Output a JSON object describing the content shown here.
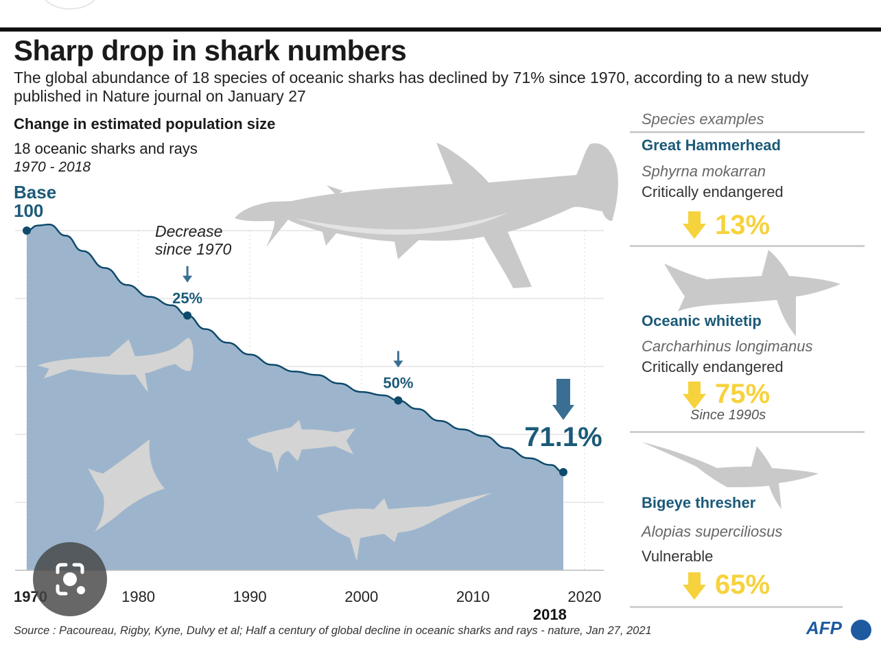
{
  "header": {
    "title": "Sharp drop in shark numbers",
    "subtitle": "The global abundance of 18 species of oceanic sharks has declined by 71% since 1970, according to a new study published in Nature journal on January 27"
  },
  "chart_data": {
    "type": "area",
    "title": "Change in estimated population size",
    "subtitle": "18 oceanic sharks and rays",
    "period": "1970 - 2018",
    "base_label": "Base",
    "base_value": "100",
    "x_ticks": [
      "1970",
      "1980",
      "1990",
      "2000",
      "2010",
      "2020"
    ],
    "x_last": "2018",
    "xlim": [
      1970,
      2020.5
    ],
    "ylim": [
      0,
      100
    ],
    "y_grid": [
      20,
      40,
      60,
      80,
      100
    ],
    "grid": true,
    "series": [
      {
        "x": [
          1970,
          1971,
          1972,
          1973.5,
          1975,
          1977,
          1979,
          1981,
          1983,
          1984.4,
          1986,
          1988,
          1990,
          1992,
          1994,
          1996,
          1998,
          2000,
          2002,
          2003.3,
          2005,
          2007,
          2009,
          2011,
          2013,
          2015,
          2017,
          2018.1
        ],
        "values": [
          100,
          101.5,
          101.8,
          98.5,
          94,
          89,
          84,
          80.5,
          78,
          75,
          71,
          67,
          63.5,
          60.5,
          58.5,
          57.5,
          55,
          52.5,
          51.5,
          50,
          47.5,
          44,
          41.5,
          39.5,
          36,
          33,
          31,
          28.9
        ]
      }
    ],
    "annotation_heading": "Decrease since 1970",
    "annotations": [
      {
        "x": 1984.4,
        "y": 75,
        "label": "25%"
      },
      {
        "x": 2003.3,
        "y": 50,
        "label": "50%"
      },
      {
        "x": 2018.1,
        "y": 28.9,
        "label": "71.1%"
      }
    ],
    "colors": {
      "fill": "#9db5cc",
      "line": "#0e4a6c",
      "label": "#1b5a78",
      "arrow": "#3a6f93",
      "grid": "#d6d6d6",
      "silhouette": "#d4d4d4"
    }
  },
  "side_panel": {
    "heading": "Species examples",
    "species": [
      {
        "name": "Great Hammerhead",
        "latin": "Sphyrna mokarran",
        "status": "Critically endangered",
        "decline": "13%",
        "icon": "hammerhead-silhouette-icon"
      },
      {
        "name": "Oceanic whitetip",
        "latin": "Carcharhinus longimanus",
        "status": "Critically endangered",
        "decline": "75%",
        "note": "Since 1990s",
        "icon": "whitetip-silhouette-icon"
      },
      {
        "name": "Bigeye thresher",
        "latin": "Alopias superciliosus",
        "status": "Vulnerable",
        "decline": "65%",
        "icon": "thresher-silhouette-icon"
      }
    ],
    "colors": {
      "arrow": "#f6d23c",
      "name": "#1b5a78"
    }
  },
  "footer": {
    "source": "Source : Pacoureau, Rigby, Kyne, Dulvy et al; Half a century of global decline in oceanic sharks and rays - nature, Jan 27, 2021",
    "logo": "AFP"
  },
  "overlay": {
    "icon": "lens-camera-icon"
  }
}
